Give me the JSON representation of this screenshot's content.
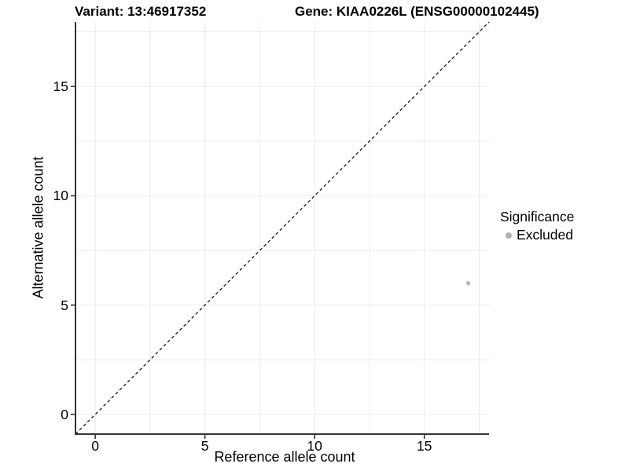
{
  "chart_data": {
    "type": "scatter",
    "title_left": "Variant: 13:46917352",
    "title_right": "Gene: KIAA0226L (ENSG00000102445)",
    "xlabel": "Reference allele count",
    "ylabel": "Alternative allele count",
    "xlim": [
      -0.9,
      17.95
    ],
    "ylim": [
      -0.9,
      17.95
    ],
    "x_ticks": {
      "values": [
        0,
        5,
        10,
        15
      ],
      "labels": [
        "0",
        "5",
        "10",
        "15"
      ]
    },
    "y_ticks": {
      "values": [
        0,
        5,
        10,
        15
      ],
      "labels": [
        "0",
        "5",
        "10",
        "15"
      ]
    },
    "minor_gridlines": [
      2.5,
      7.5,
      12.5,
      17.5
    ],
    "grid": "on",
    "identity_line": {
      "style": "dashed",
      "color": "#1a1a1a",
      "from": [
        -0.9,
        -0.9
      ],
      "to": [
        17.95,
        17.95
      ]
    },
    "series": [
      {
        "name": "Excluded",
        "color": "#b9b9b9",
        "points": [
          {
            "x": 17,
            "y": 6
          }
        ]
      }
    ],
    "legend": {
      "position": "right",
      "title": "Significance",
      "items": [
        {
          "label": "Excluded",
          "color": "#b3b3b3"
        }
      ]
    },
    "colors": {
      "background": "#ffffff",
      "gridline": "#ebebeb",
      "axis_line": "#333333",
      "tick_mark": "#333333",
      "text": "#000000"
    }
  }
}
